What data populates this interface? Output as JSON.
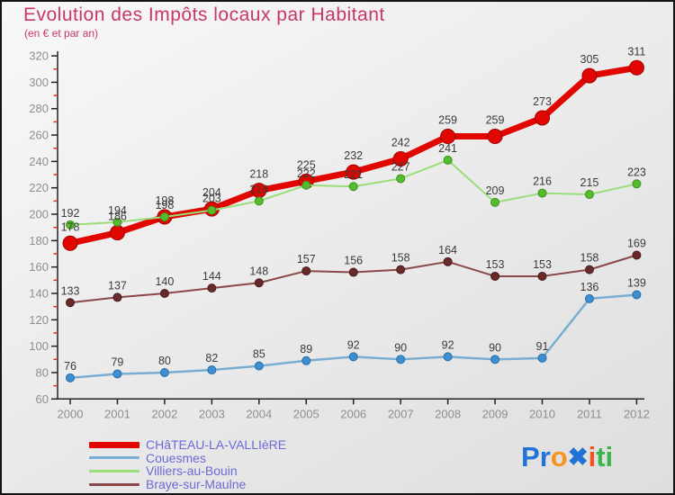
{
  "header": {
    "title": "Evolution des Impôts locaux par Habitant",
    "subtitle": "(en € et par an)"
  },
  "chart_data": {
    "type": "line",
    "title": "Evolution des Impôts locaux par Habitant",
    "subtitle": "(en € et par an)",
    "x": [
      2000,
      2001,
      2002,
      2003,
      2004,
      2005,
      2006,
      2007,
      2008,
      2009,
      2010,
      2011,
      2012
    ],
    "series": [
      {
        "name": "CHâTEAU-LA-VALLIèRE",
        "line_color": "#e10600",
        "marker_color": "#e10600",
        "marker_stroke": "#9e0000",
        "line_width": 7,
        "marker_radius": 8,
        "values": [
          178,
          186,
          198,
          204,
          218,
          225,
          232,
          242,
          259,
          259,
          273,
          305,
          311
        ]
      },
      {
        "name": "Couesmes",
        "line_color": "#79aed2",
        "marker_color": "#3d8fd1",
        "marker_stroke": "#2a6da6",
        "line_width": 2.5,
        "marker_radius": 4.5,
        "values": [
          76,
          79,
          80,
          82,
          85,
          89,
          92,
          90,
          92,
          90,
          91,
          136,
          139
        ]
      },
      {
        "name": "Villiers-au-Bouin",
        "line_color": "#9ade7a",
        "marker_color": "#54bd2e",
        "marker_stroke": "#3f8f1f",
        "line_width": 2,
        "marker_radius": 4.5,
        "values": [
          192,
          194,
          198,
          203,
          210,
          222,
          221,
          227,
          241,
          209,
          216,
          215,
          223
        ]
      },
      {
        "name": "Braye-sur-Maulne",
        "line_color": "#8a4848",
        "marker_color": "#6b2a2a",
        "marker_stroke": "#451a1a",
        "line_width": 2,
        "marker_radius": 4.5,
        "values": [
          133,
          137,
          140,
          144,
          148,
          157,
          156,
          158,
          164,
          153,
          153,
          158,
          169
        ]
      }
    ],
    "ylim": [
      60,
      320
    ],
    "y_major_step": 20,
    "grid": false,
    "legend_position": "bottom-left",
    "colors": {
      "axis": "#222222",
      "tick_label": "#8f8f8f",
      "minor_tick": "#cc3333",
      "data_label": "#3b3b3b",
      "title": "#c93766",
      "legend_text": "#6b6bd6"
    }
  },
  "logo": {
    "letters": [
      {
        "ch": "P",
        "color": "#2173d6"
      },
      {
        "ch": "r",
        "color": "#2173d6"
      },
      {
        "ch": "o",
        "color": "#f7941d"
      },
      {
        "ch": "✖",
        "color": "#2173d6"
      },
      {
        "ch": "i",
        "color": "#ef5423"
      },
      {
        "ch": "t",
        "color": "#3ab54a"
      },
      {
        "ch": "i",
        "color": "#3ab54a"
      }
    ]
  }
}
